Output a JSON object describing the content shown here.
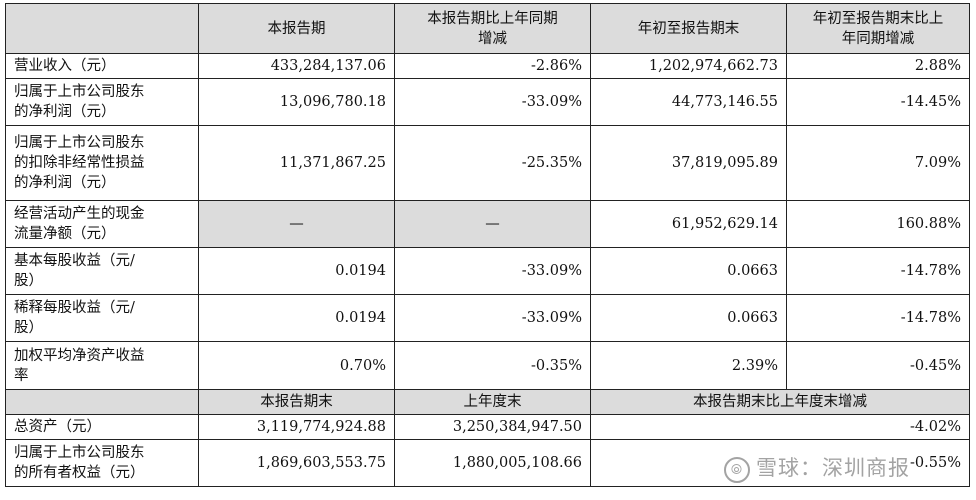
{
  "header": {
    "col1": "本报告期",
    "col2": "本报告期比上年同期\n增减",
    "col3": "年初至报告期末",
    "col4": "年初至报告期末比上\n年同期增减"
  },
  "rows": [
    {
      "label": "营业收入（元）",
      "v1": "433,284,137.06",
      "v2": "-2.86%",
      "v3": "1,202,974,662.73",
      "v4": "2.88%"
    },
    {
      "label": "归属于上市公司股东\n的净利润（元）",
      "v1": "13,096,780.18",
      "v2": "-33.09%",
      "v3": "44,773,146.55",
      "v4": "-14.45%"
    },
    {
      "label": "归属于上市公司股东\n的扣除非经常性损益\n的净利润（元）",
      "v1": "11,371,867.25",
      "v2": "-25.35%",
      "v3": "37,819,095.89",
      "v4": "7.09%"
    },
    {
      "label": "经营活动产生的现金\n流量净额（元）",
      "v1": "—",
      "v2": "—",
      "v3": "61,952,629.14",
      "v4": "160.88%"
    },
    {
      "label": "基本每股收益（元/\n股）",
      "v1": "0.0194",
      "v2": "-33.09%",
      "v3": "0.0663",
      "v4": "-14.78%"
    },
    {
      "label": "稀释每股收益（元/\n股）",
      "v1": "0.0194",
      "v2": "-33.09%",
      "v3": "0.0663",
      "v4": "-14.78%"
    },
    {
      "label": "加权平均净资产收益\n率",
      "v1": "0.70%",
      "v2": "-0.35%",
      "v3": "2.39%",
      "v4": "-0.45%"
    }
  ],
  "header2": {
    "col1": "本报告期末",
    "col2": "上年度末",
    "col3": "本报告期末比上年度末增减"
  },
  "rows2": [
    {
      "label": "总资产（元）",
      "v1": "3,119,774,924.88",
      "v2": "3,250,384,947.50",
      "v3": "-4.02%"
    },
    {
      "label": "归属于上市公司股东\n的所有者权益（元）",
      "v1": "1,869,603,553.75",
      "v2": "1,880,005,108.66",
      "v3": "-0.55%"
    }
  ],
  "watermark": {
    "icon": "xueqiu-logo-icon",
    "text": "雪球：深圳商报"
  }
}
